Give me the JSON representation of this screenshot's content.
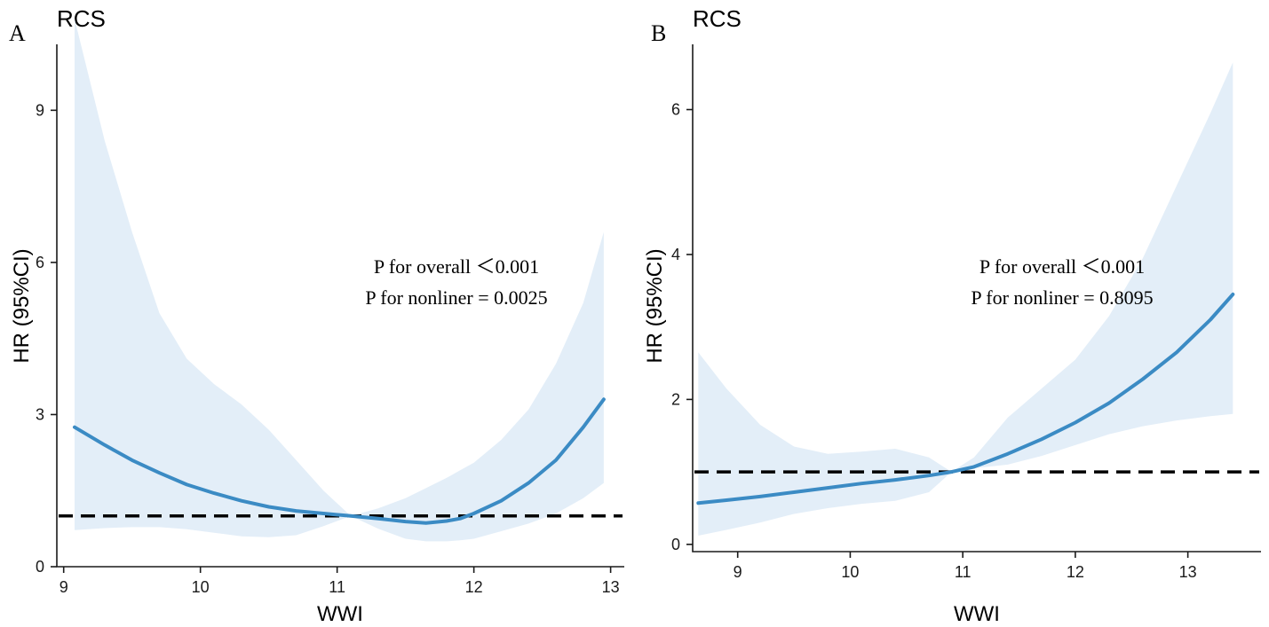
{
  "chart_data": [
    {
      "panel_label": "A",
      "type": "line",
      "title": "RCS",
      "xlabel": "WWI",
      "ylabel": "HR (95%CI)",
      "xlim": [
        8.95,
        13.1
      ],
      "ylim": [
        0,
        10.3
      ],
      "xticks": [
        9,
        10,
        11,
        12,
        13
      ],
      "xtick_labels": [
        "9",
        "10",
        "11",
        "12",
        "13"
      ],
      "yticks": [
        0,
        3,
        6,
        9
      ],
      "ytick_labels": [
        "0",
        "3",
        "6",
        "9"
      ],
      "reference_line": 1,
      "annotations": [
        "P for overall ＜0.001",
        "P for nonliner = 0.0025"
      ],
      "series": [
        {
          "name": "HR",
          "x": [
            9.08,
            9.3,
            9.5,
            9.7,
            9.9,
            10.1,
            10.3,
            10.5,
            10.7,
            10.9,
            11.1,
            11.3,
            11.5,
            11.65,
            11.8,
            11.9,
            12.0,
            12.2,
            12.4,
            12.6,
            12.8,
            12.95
          ],
          "y": [
            2.75,
            2.4,
            2.1,
            1.85,
            1.62,
            1.45,
            1.3,
            1.18,
            1.1,
            1.05,
            1.0,
            0.95,
            0.89,
            0.86,
            0.9,
            0.95,
            1.05,
            1.3,
            1.65,
            2.1,
            2.75,
            3.3
          ],
          "lower": [
            0.72,
            0.76,
            0.78,
            0.78,
            0.74,
            0.67,
            0.6,
            0.58,
            0.62,
            0.8,
            1.0,
            0.75,
            0.55,
            0.5,
            0.5,
            0.52,
            0.55,
            0.7,
            0.85,
            1.05,
            1.35,
            1.65
          ],
          "upper": [
            10.8,
            8.4,
            6.6,
            5.0,
            4.1,
            3.6,
            3.2,
            2.7,
            2.1,
            1.5,
            1.0,
            1.15,
            1.35,
            1.55,
            1.75,
            1.9,
            2.05,
            2.5,
            3.1,
            4.0,
            5.2,
            6.6
          ]
        }
      ],
      "colors": {
        "curve": "#3b8bc4",
        "ci": "#e3eef8",
        "reference": "#000000"
      }
    },
    {
      "panel_label": "B",
      "type": "line",
      "title": "RCS",
      "xlabel": "WWI",
      "ylabel": "HR (95%CI)",
      "xlim": [
        8.6,
        13.65
      ],
      "ylim": [
        -0.1,
        6.9
      ],
      "xticks": [
        9,
        10,
        11,
        12,
        13
      ],
      "xtick_labels": [
        "9",
        "10",
        "11",
        "12",
        "13"
      ],
      "yticks": [
        0,
        2,
        4,
        6
      ],
      "ytick_labels": [
        "0",
        "2",
        "4",
        "6"
      ],
      "reference_line": 1,
      "annotations": [
        "P for overall ＜0.001",
        "P for nonliner = 0.8095"
      ],
      "series": [
        {
          "name": "HR",
          "x": [
            8.65,
            8.9,
            9.2,
            9.5,
            9.8,
            10.1,
            10.4,
            10.7,
            10.9,
            11.1,
            11.4,
            11.7,
            12.0,
            12.3,
            12.6,
            12.9,
            13.2,
            13.4
          ],
          "y": [
            0.57,
            0.61,
            0.66,
            0.72,
            0.78,
            0.84,
            0.89,
            0.95,
            1.0,
            1.07,
            1.25,
            1.45,
            1.68,
            1.95,
            2.28,
            2.65,
            3.1,
            3.45
          ],
          "lower": [
            0.12,
            0.2,
            0.3,
            0.42,
            0.5,
            0.56,
            0.6,
            0.72,
            1.0,
            1.05,
            1.1,
            1.22,
            1.37,
            1.52,
            1.63,
            1.71,
            1.77,
            1.8
          ],
          "upper": [
            2.65,
            2.15,
            1.65,
            1.35,
            1.25,
            1.28,
            1.32,
            1.2,
            1.0,
            1.2,
            1.75,
            2.15,
            2.55,
            3.15,
            3.95,
            4.95,
            5.95,
            6.65
          ]
        }
      ],
      "colors": {
        "curve": "#3b8bc4",
        "ci": "#e3eef8",
        "reference": "#000000"
      }
    }
  ]
}
